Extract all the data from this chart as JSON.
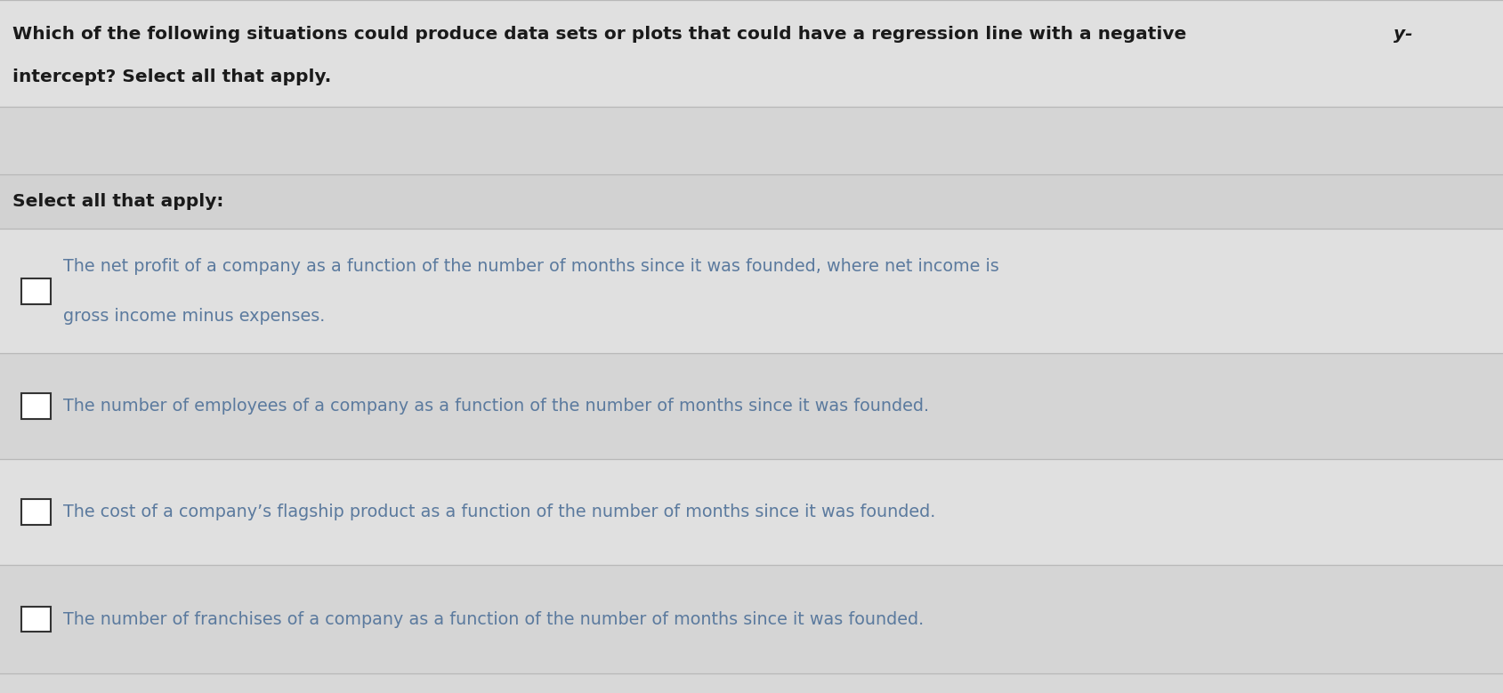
{
  "bg_color": "#d8d8d8",
  "header_bg": "#e0e0e0",
  "blank_bg": "#d5d5d5",
  "select_bg": "#d2d2d2",
  "opt1_bg": "#e0e0e0",
  "opt2_bg": "#d5d5d5",
  "opt3_bg": "#e0e0e0",
  "opt4_bg": "#d5d5d5",
  "divider_color": "#b8b8b8",
  "text_color": "#1a1a1a",
  "blue_text_color": "#5b7a9e",
  "header_line1": "Which of the following situations could produce data sets or plots that could have a regression line with a negative ",
  "header_italic": "y-",
  "header_line2": "intercept? Select all that apply.",
  "select_label": "Select all that apply:",
  "opt1_line1": "The net profit of a company as a function of the number of months since it was founded, where net income is",
  "opt1_line2": "gross income minus expenses.",
  "opt2": "The number of employees of a company as a function of the number of months since it was founded.",
  "opt3": "The cost of a company’s flagship product as a function of the number of months since it was founded.",
  "opt4": "The number of franchises of a company as a function of the number of months since it was founded.",
  "figsize": [
    16.89,
    7.79
  ],
  "dpi": 100
}
